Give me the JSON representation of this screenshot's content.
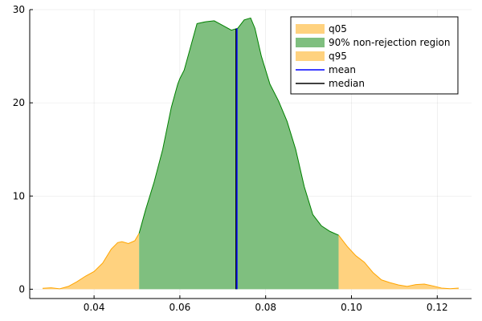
{
  "chart_data": {
    "type": "area",
    "xlim": [
      0.025,
      0.128
    ],
    "ylim": [
      -1.0,
      30.0
    ],
    "x_ticks": [
      0.04,
      0.06,
      0.08,
      0.1,
      0.12
    ],
    "x_tick_labels": [
      "0.04",
      "0.06",
      "0.08",
      "0.10",
      "0.12"
    ],
    "y_ticks": [
      0,
      10,
      20,
      30
    ],
    "y_tick_labels": [
      "0",
      "10",
      "20",
      "30"
    ],
    "grid": true,
    "legend_position": "top-right",
    "density": {
      "x": [
        0.028,
        0.03,
        0.032,
        0.034,
        0.036,
        0.038,
        0.04,
        0.042,
        0.044,
        0.0455,
        0.0465,
        0.048,
        0.0495,
        0.0505,
        0.052,
        0.054,
        0.056,
        0.058,
        0.0595,
        0.06,
        0.061,
        0.0625,
        0.064,
        0.066,
        0.068,
        0.07,
        0.072,
        0.0735,
        0.075,
        0.0765,
        0.0775,
        0.079,
        0.081,
        0.083,
        0.085,
        0.087,
        0.089,
        0.091,
        0.093,
        0.095,
        0.097,
        0.099,
        0.101,
        0.103,
        0.105,
        0.107,
        0.109,
        0.111,
        0.113,
        0.115,
        0.117,
        0.119,
        0.121,
        0.123,
        0.125
      ],
      "y": [
        0.1,
        0.15,
        0.05,
        0.3,
        0.8,
        1.4,
        1.9,
        2.8,
        4.3,
        5.0,
        5.1,
        4.9,
        5.2,
        6.0,
        8.5,
        11.5,
        15.0,
        19.5,
        22.0,
        22.6,
        23.5,
        26.0,
        28.5,
        28.7,
        28.8,
        28.3,
        27.8,
        28.0,
        28.9,
        29.1,
        28.0,
        25.0,
        22.0,
        20.2,
        18.0,
        15.0,
        11.0,
        8.0,
        6.8,
        6.2,
        5.8,
        4.6,
        3.6,
        2.9,
        1.8,
        1.0,
        0.7,
        0.45,
        0.3,
        0.5,
        0.55,
        0.35,
        0.12,
        0.06,
        0.12
      ]
    },
    "q05": 0.0505,
    "q95": 0.097,
    "mean": 0.0733,
    "median": 0.0731,
    "series": [
      {
        "name": "q05",
        "color": "#ffd27f"
      },
      {
        "name": "90% non-rejection region",
        "color": "#7fbf7f"
      },
      {
        "name": "q95",
        "color": "#ffd27f"
      },
      {
        "name": "mean",
        "color": "#0000ff"
      },
      {
        "name": "median",
        "color": "#000000"
      }
    ],
    "colors": {
      "tail_fill": "#ffd27f",
      "tail_stroke": "#ffa500",
      "center_fill": "#7fbf7f",
      "center_stroke": "#008000",
      "mean_line": "#0000ff",
      "median_line": "#000000"
    }
  }
}
